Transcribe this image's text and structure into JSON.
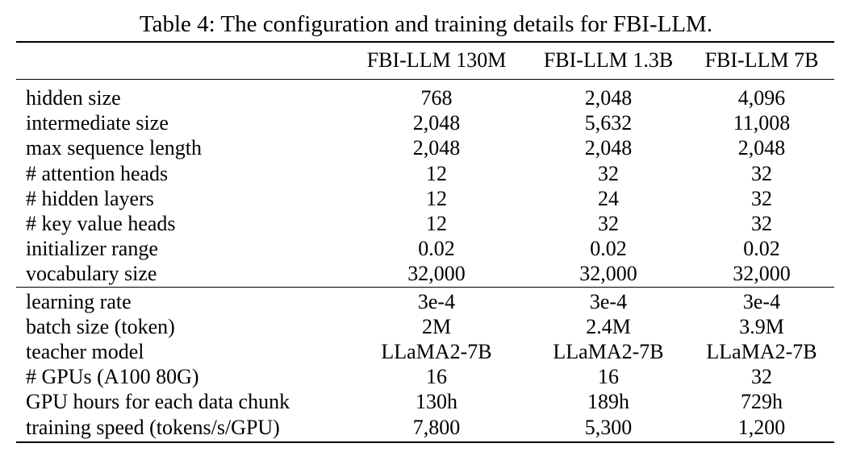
{
  "caption": "Table 4: The configuration and training details for FBI-LLM.",
  "columns": [
    "",
    "FBI-LLM 130M",
    "FBI-LLM 1.3B",
    "FBI-LLM 7B"
  ],
  "config_rows": [
    {
      "label": "hidden size",
      "values": [
        "768",
        "2,048",
        "4,096"
      ]
    },
    {
      "label": "intermediate size",
      "values": [
        "2,048",
        "5,632",
        "11,008"
      ]
    },
    {
      "label": "max sequence length",
      "values": [
        "2,048",
        "2,048",
        "2,048"
      ]
    },
    {
      "label": "# attention heads",
      "values": [
        "12",
        "32",
        "32"
      ]
    },
    {
      "label": "# hidden layers",
      "values": [
        "12",
        "24",
        "32"
      ]
    },
    {
      "label": "# key value heads",
      "values": [
        "12",
        "32",
        "32"
      ]
    },
    {
      "label": "initializer range",
      "values": [
        "0.02",
        "0.02",
        "0.02"
      ]
    },
    {
      "label": "vocabulary size",
      "values": [
        "32,000",
        "32,000",
        "32,000"
      ]
    }
  ],
  "training_rows": [
    {
      "label": "learning rate",
      "values": [
        "3e-4",
        "3e-4",
        "3e-4"
      ]
    },
    {
      "label": "batch size (token)",
      "values": [
        "2M",
        "2.4M",
        "3.9M"
      ]
    },
    {
      "label": "teacher model",
      "values": [
        "LLaMA2-7B",
        "LLaMA2-7B",
        "LLaMA2-7B"
      ]
    },
    {
      "label": "# GPUs (A100 80G)",
      "values": [
        "16",
        "16",
        "32"
      ]
    },
    {
      "label": "GPU hours for each data chunk",
      "values": [
        "130h",
        "189h",
        "729h"
      ]
    },
    {
      "label": "training speed (tokens/s/GPU)",
      "values": [
        "7,800",
        "5,300",
        "1,200"
      ]
    }
  ]
}
